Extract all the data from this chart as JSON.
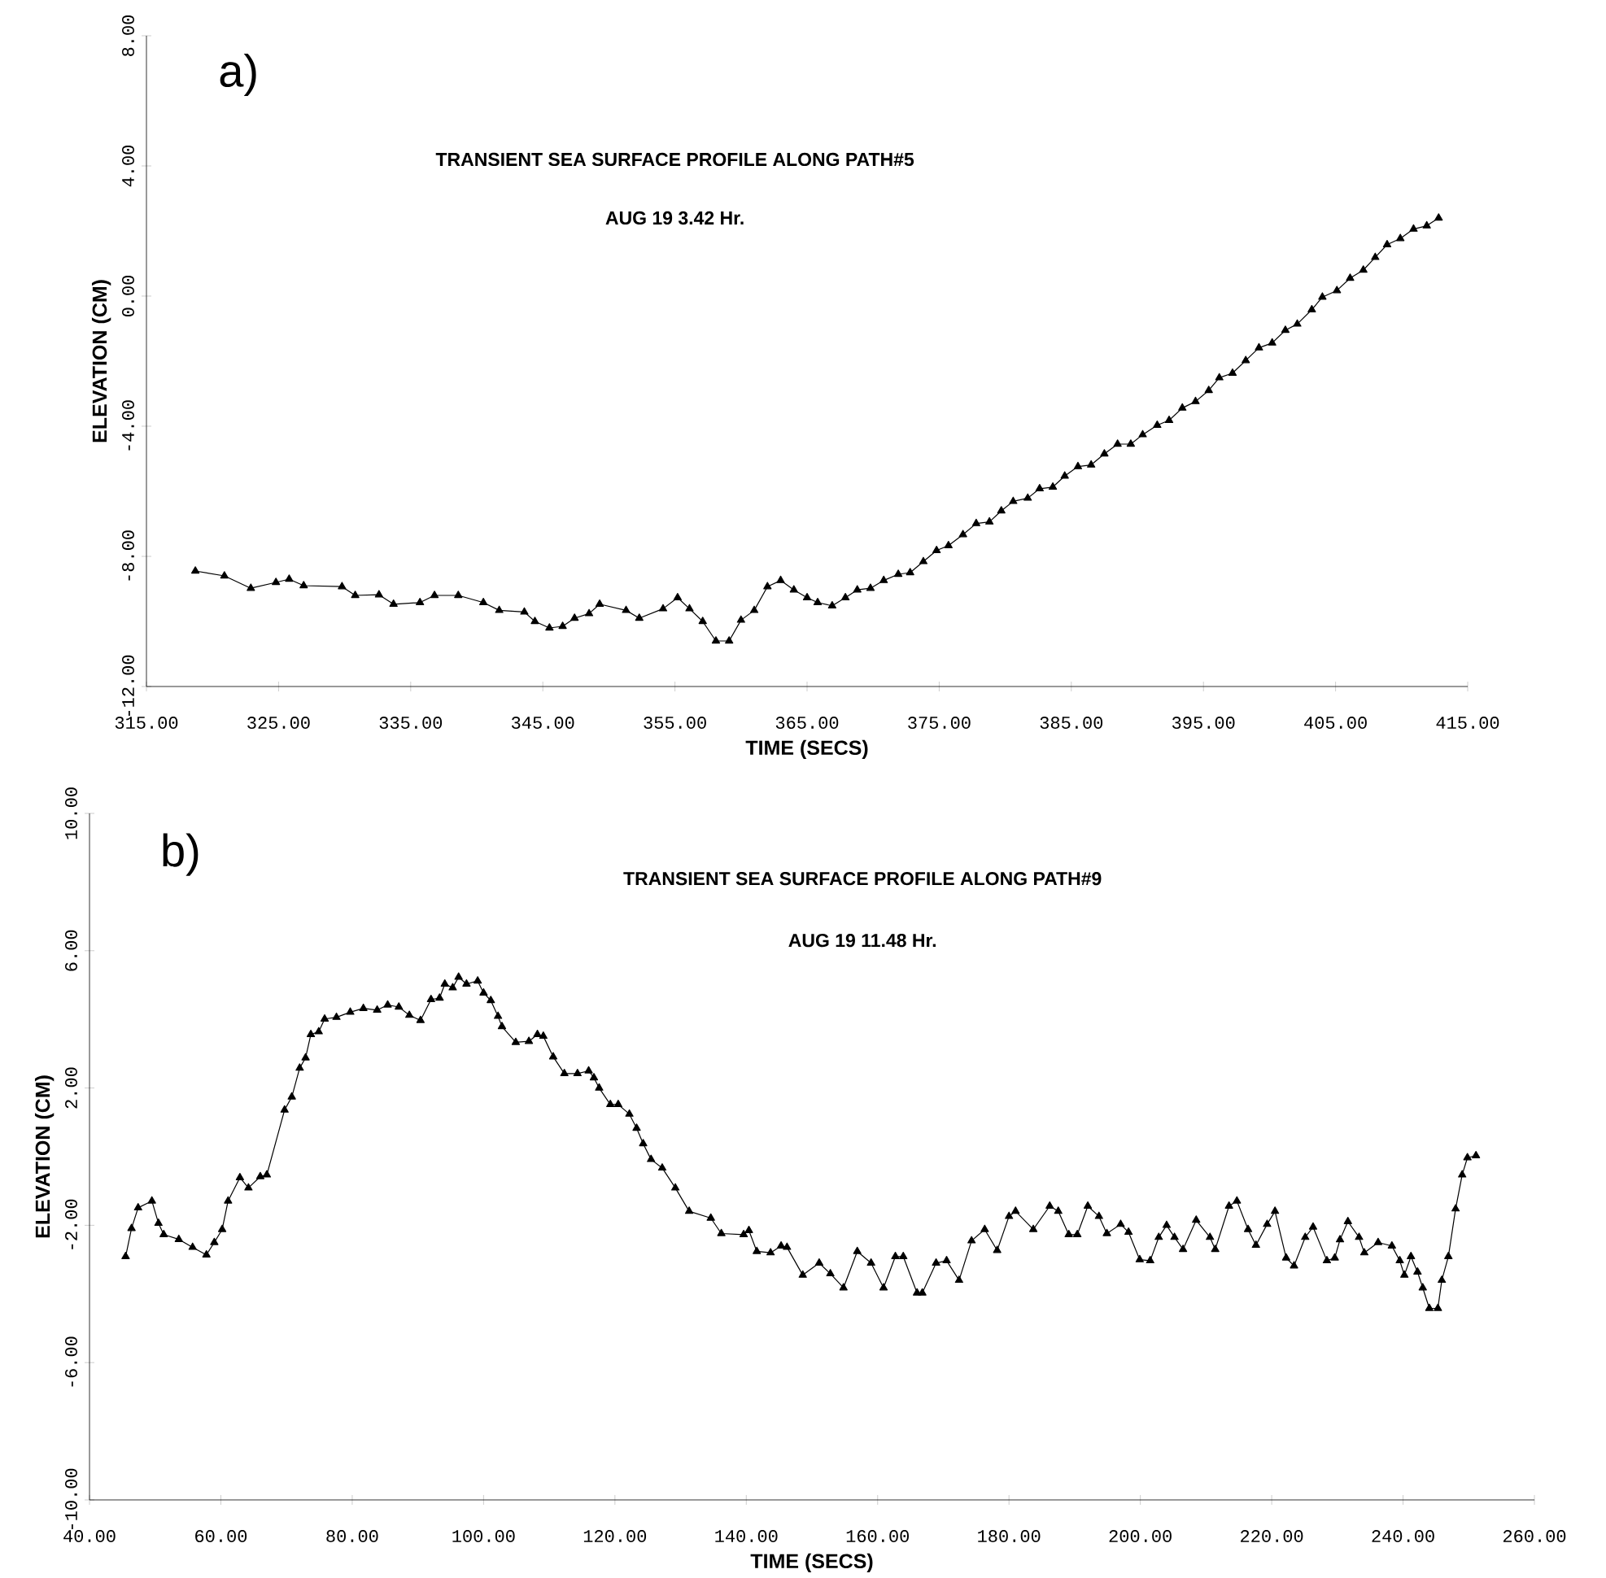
{
  "chart_data": [
    {
      "type": "line",
      "title": "TRANSIENT SEA SURFACE PROFILE ALONG PATH#5",
      "subtitle": "AUG 19 3.42 Hr.",
      "xlabel": "TIME (SECS)",
      "ylabel": "ELEVATION (CM)",
      "annotations": [
        "a)"
      ],
      "xlim": [
        315,
        415
      ],
      "ylim": [
        -12,
        8
      ],
      "xticks": [
        {
          "value": 315,
          "label": "315.00"
        },
        {
          "value": 325,
          "label": "325.00"
        },
        {
          "value": 335,
          "label": "335.00"
        },
        {
          "value": 345,
          "label": "345.00"
        },
        {
          "value": 355,
          "label": "355.00"
        },
        {
          "value": 365,
          "label": "365.00"
        },
        {
          "value": 375,
          "label": "375.00"
        },
        {
          "value": 385,
          "label": "385.00"
        },
        {
          "value": 395,
          "label": "395.00"
        },
        {
          "value": 405,
          "label": "405.00"
        },
        {
          "value": 415,
          "label": "415.00"
        }
      ],
      "yticks": [
        {
          "value": -12,
          "label": "-12.00"
        },
        {
          "value": -8,
          "label": "-8.00"
        },
        {
          "value": -4,
          "label": "-4.00"
        },
        {
          "value": 0,
          "label": "0.00"
        },
        {
          "value": 4,
          "label": "4.00"
        },
        {
          "value": 8,
          "label": "8.00"
        }
      ],
      "marker": "triangle",
      "line_style": "solid",
      "series": [
        {
          "color": "#000000",
          "x": [
            318.7,
            320.9,
            322.9,
            324.8,
            325.8,
            326.9,
            329.8,
            330.8,
            332.6,
            333.7,
            335.7,
            336.8,
            338.6,
            340.5,
            341.7,
            343.6,
            344.4,
            345.5,
            346.5,
            347.4,
            348.5,
            349.3,
            351.3,
            352.3,
            354.1,
            355.2,
            356.1,
            357.1,
            358.1,
            359.1,
            360.0,
            361.0,
            362.0,
            363.0,
            364.0,
            365.0,
            365.8,
            366.9,
            367.9,
            368.8,
            369.8,
            370.8,
            371.9,
            372.8,
            373.8,
            374.8,
            375.7,
            376.8,
            377.8,
            378.8,
            379.7,
            380.6,
            381.7,
            382.6,
            383.6,
            384.5,
            385.5,
            386.5,
            387.5,
            388.5,
            389.5,
            390.4,
            391.5,
            392.4,
            393.4,
            394.4,
            395.4,
            396.2,
            397.2,
            398.2,
            399.2,
            400.2,
            401.2,
            402.1,
            403.2,
            404.0,
            405.1,
            406.1,
            407.1,
            408.0,
            408.9,
            409.9,
            410.9,
            411.9,
            412.8
          ],
          "values": [
            -8.45,
            -8.6,
            -8.98,
            -8.8,
            -8.7,
            -8.9,
            -8.93,
            -9.2,
            -9.18,
            -9.47,
            -9.42,
            -9.2,
            -9.2,
            -9.42,
            -9.66,
            -9.71,
            -10.0,
            -10.2,
            -10.15,
            -9.9,
            -9.76,
            -9.47,
            -9.66,
            -9.9,
            -9.61,
            -9.27,
            -9.61,
            -10.0,
            -10.6,
            -10.6,
            -9.96,
            -9.66,
            -8.93,
            -8.74,
            -9.03,
            -9.27,
            -9.42,
            -9.52,
            -9.27,
            -9.03,
            -8.98,
            -8.74,
            -8.55,
            -8.5,
            -8.16,
            -7.82,
            -7.67,
            -7.33,
            -6.99,
            -6.94,
            -6.6,
            -6.31,
            -6.21,
            -5.92,
            -5.87,
            -5.53,
            -5.24,
            -5.19,
            -4.85,
            -4.55,
            -4.55,
            -4.26,
            -3.97,
            -3.82,
            -3.44,
            -3.24,
            -2.9,
            -2.51,
            -2.37,
            -1.98,
            -1.59,
            -1.44,
            -1.05,
            -0.86,
            -0.42,
            -0.03,
            0.17,
            0.55,
            0.8,
            1.19,
            1.58,
            1.77,
            2.06,
            2.16,
            2.4
          ]
        }
      ]
    },
    {
      "type": "line",
      "title": "TRANSIENT SEA SURFACE PROFILE ALONG PATH#9",
      "subtitle": "AUG 19 11.48 Hr.",
      "xlabel": "TIME (SECS)",
      "ylabel": "ELEVATION (CM)",
      "annotations": [
        "b)"
      ],
      "xlim": [
        40,
        260
      ],
      "ylim": [
        -10,
        10
      ],
      "xticks": [
        {
          "value": 40,
          "label": "40.00"
        },
        {
          "value": 60,
          "label": "60.00"
        },
        {
          "value": 80,
          "label": "80.00"
        },
        {
          "value": 100,
          "label": "100.00"
        },
        {
          "value": 120,
          "label": "120.00"
        },
        {
          "value": 140,
          "label": "140.00"
        },
        {
          "value": 160,
          "label": "160.00"
        },
        {
          "value": 180,
          "label": "180.00"
        },
        {
          "value": 200,
          "label": "200.00"
        },
        {
          "value": 220,
          "label": "220.00"
        },
        {
          "value": 240,
          "label": "240.00"
        },
        {
          "value": 260,
          "label": "260.00"
        }
      ],
      "yticks": [
        {
          "value": -10,
          "label": "-10.00"
        },
        {
          "value": -6,
          "label": "-6.00"
        },
        {
          "value": -2,
          "label": "-2.00"
        },
        {
          "value": 2,
          "label": "2.00"
        },
        {
          "value": 6,
          "label": "6.00"
        },
        {
          "value": 10,
          "label": "10.00"
        }
      ],
      "marker": "triangle",
      "line_style": "solid",
      "series": [
        {
          "color": "#000000",
          "x": [
            45.5,
            46.4,
            47.4,
            49.5,
            50.5,
            51.3,
            53.6,
            55.7,
            57.8,
            59.0,
            60.2,
            61.1,
            62.9,
            64.2,
            66.0,
            67.0,
            69.7,
            70.8,
            72.0,
            72.9,
            73.7,
            74.9,
            75.8,
            77.6,
            79.7,
            81.7,
            83.8,
            85.4,
            87.1,
            88.7,
            90.4,
            92.0,
            93.3,
            94.1,
            95.3,
            96.2,
            97.4,
            99.1,
            100.0,
            101.1,
            102.2,
            102.8,
            104.9,
            106.9,
            108.2,
            109.1,
            110.6,
            112.3,
            114.3,
            116.0,
            116.8,
            117.6,
            119.3,
            120.5,
            122.2,
            123.3,
            124.3,
            125.5,
            127.2,
            129.2,
            131.3,
            134.6,
            136.2,
            139.6,
            140.4,
            141.6,
            143.7,
            145.3,
            146.2,
            148.6,
            151.1,
            152.8,
            154.8,
            156.9,
            159.0,
            160.9,
            162.7,
            163.9,
            166.0,
            166.8,
            168.9,
            170.5,
            172.4,
            174.3,
            176.3,
            178.2,
            180.0,
            181.0,
            183.7,
            186.2,
            187.5,
            189.1,
            190.4,
            192.0,
            193.7,
            194.9,
            197.0,
            198.2,
            199.9,
            201.5,
            202.8,
            204.0,
            205.2,
            206.5,
            208.5,
            210.6,
            211.4,
            213.5,
            214.7,
            216.4,
            217.6,
            219.3,
            220.5,
            222.2,
            223.4,
            225.1,
            226.3,
            228.4,
            229.6,
            230.4,
            231.6,
            233.3,
            234.1,
            236.2,
            238.3,
            239.5,
            240.2,
            241.2,
            242.2,
            243.0,
            244.0,
            245.3,
            245.9,
            246.9,
            248.0,
            249.0,
            249.8,
            251.1
          ],
          "values": [
            -2.91,
            -2.09,
            -1.49,
            -1.29,
            -1.94,
            -2.27,
            -2.41,
            -2.64,
            -2.86,
            -2.5,
            -2.12,
            -1.29,
            -0.61,
            -0.91,
            -0.58,
            -0.53,
            1.36,
            1.74,
            2.58,
            2.88,
            3.56,
            3.64,
            4.01,
            4.06,
            4.21,
            4.32,
            4.27,
            4.42,
            4.36,
            4.12,
            3.97,
            4.58,
            4.62,
            5.03,
            4.92,
            5.23,
            5.03,
            5.12,
            4.77,
            4.55,
            4.09,
            3.79,
            3.33,
            3.36,
            3.56,
            3.51,
            2.91,
            2.42,
            2.42,
            2.5,
            2.3,
            2.0,
            1.52,
            1.52,
            1.24,
            0.83,
            0.38,
            -0.08,
            -0.33,
            -0.91,
            -1.59,
            -1.79,
            -2.24,
            -2.27,
            -2.15,
            -2.76,
            -2.8,
            -2.6,
            -2.64,
            -3.45,
            -3.1,
            -3.41,
            -3.82,
            -2.76,
            -3.1,
            -3.82,
            -2.91,
            -2.91,
            -3.97,
            -3.97,
            -3.1,
            -3.03,
            -3.6,
            -2.45,
            -2.12,
            -2.73,
            -1.74,
            -1.59,
            -2.12,
            -1.44,
            -1.59,
            -2.27,
            -2.27,
            -1.44,
            -1.74,
            -2.24,
            -1.97,
            -2.2,
            -3.0,
            -3.03,
            -2.35,
            -2.0,
            -2.35,
            -2.7,
            -1.85,
            -2.35,
            -2.7,
            -1.44,
            -1.29,
            -2.12,
            -2.58,
            -1.97,
            -1.59,
            -2.95,
            -3.18,
            -2.35,
            -2.05,
            -3.03,
            -2.95,
            -2.42,
            -1.89,
            -2.35,
            -2.8,
            -2.5,
            -2.6,
            -3.03,
            -3.45,
            -2.91,
            -3.36,
            -3.82,
            -4.42,
            -4.42,
            -3.6,
            -2.91,
            -1.52,
            -0.53,
            -0.03,
            0.03
          ]
        }
      ]
    }
  ]
}
